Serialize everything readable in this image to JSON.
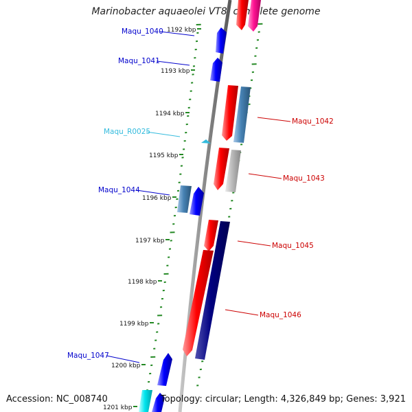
{
  "title": "Marinobacter aquaeolei VT8, complete genome",
  "footer": {
    "accession": "Accession: NC_008740",
    "summary": "Topology: circular; Length: 4,326,849 bp; Genes: 3,921"
  },
  "ticks": [
    {
      "label": "1192 kbp"
    },
    {
      "label": "1193 kbp"
    },
    {
      "label": "1194 kbp"
    },
    {
      "label": "1195 kbp"
    },
    {
      "label": "1196 kbp"
    },
    {
      "label": "1197 kbp"
    },
    {
      "label": "1198 kbp"
    },
    {
      "label": "1199 kbp"
    },
    {
      "label": "1200 kbp"
    },
    {
      "label": "1201 kbp"
    }
  ],
  "gene_labels": [
    {
      "name": "Maqu_1040",
      "color": "#0000cc"
    },
    {
      "name": "Maqu_1041",
      "color": "#0000cc"
    },
    {
      "name": "Maqu_R0025",
      "color": "#33bbdd"
    },
    {
      "name": "Maqu_1044",
      "color": "#0000cc"
    },
    {
      "name": "Maqu_1047",
      "color": "#0000cc"
    },
    {
      "name": "Maqu_1042",
      "color": "#cc0000"
    },
    {
      "name": "Maqu_1043",
      "color": "#cc0000"
    },
    {
      "name": "Maqu_1045",
      "color": "#cc0000"
    },
    {
      "name": "Maqu_1046",
      "color": "#cc0000"
    }
  ],
  "colors": {
    "backbone": "#999999",
    "tick": "#228822",
    "reverse_strand": "#0000ee",
    "forward_strand": "#ee0000",
    "cog_blue": "#4682b4",
    "cog_gray": "#b0b0b0",
    "cog_navy": "#000080",
    "cog_pink": "#ee1493",
    "cog_cyan": "#00e5ee",
    "rna": "#33bbdd"
  }
}
